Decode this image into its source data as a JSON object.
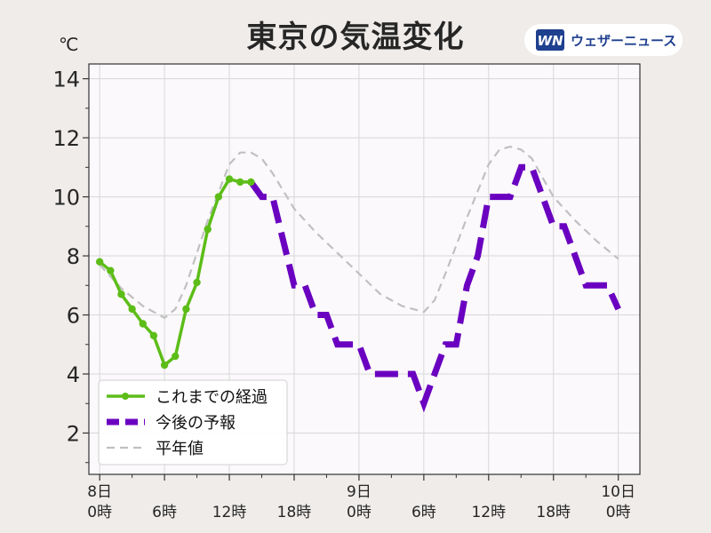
{
  "title": "東京の気温変化",
  "unit": "℃",
  "logo": {
    "text": "ウェザーニュース",
    "mark": "WN"
  },
  "colors": {
    "observed": "#5cbd18",
    "forecast": "#6a00c0",
    "normal": "#c0c0c0",
    "plot_background": "#fbf9fb",
    "grid": "#d8d8d8"
  },
  "chart_data": {
    "type": "line",
    "title": "東京の気温変化",
    "ylabel": "℃",
    "xlabel": "",
    "xlim": [
      -1,
      50
    ],
    "ylim": [
      0.6,
      14.5
    ],
    "grid": true,
    "legend_position": "bottom-left",
    "y_ticks": [
      2,
      4,
      6,
      8,
      10,
      12,
      14
    ],
    "x_ticks": [
      {
        "x": 0,
        "day": "8日",
        "hour": "0時"
      },
      {
        "x": 6,
        "day": "",
        "hour": "6時"
      },
      {
        "x": 12,
        "day": "",
        "hour": "12時"
      },
      {
        "x": 18,
        "day": "",
        "hour": "18時"
      },
      {
        "x": 24,
        "day": "9日",
        "hour": "0時"
      },
      {
        "x": 30,
        "day": "",
        "hour": "6時"
      },
      {
        "x": 36,
        "day": "",
        "hour": "12時"
      },
      {
        "x": 42,
        "day": "",
        "hour": "18時"
      },
      {
        "x": 48,
        "day": "10日",
        "hour": "0時"
      }
    ],
    "series": [
      {
        "name": "これまでの経過",
        "style": "solid-markers",
        "x": [
          0,
          1,
          2,
          3,
          4,
          5,
          6,
          7,
          8,
          9,
          10,
          11,
          12,
          13,
          14
        ],
        "y": [
          7.8,
          7.5,
          6.7,
          6.2,
          5.7,
          5.3,
          4.3,
          4.6,
          6.2,
          7.1,
          8.9,
          10.0,
          10.6,
          10.5,
          10.5
        ]
      },
      {
        "name": "今後の予報",
        "style": "dashed-thick",
        "x": [
          14,
          15,
          16,
          17,
          18,
          19,
          20,
          21,
          22,
          23,
          24,
          25,
          26,
          27,
          28,
          29,
          30,
          31,
          32,
          33,
          34,
          35,
          36,
          37,
          38,
          39,
          40,
          41,
          42,
          43,
          44,
          45,
          46,
          47,
          48
        ],
        "y": [
          10.5,
          10,
          10,
          8.5,
          7,
          7,
          6,
          6,
          5,
          5,
          5,
          4,
          4,
          4,
          4,
          4,
          3,
          4,
          5,
          5,
          7,
          8,
          10,
          10,
          10,
          11,
          11,
          10,
          9,
          9,
          8,
          7,
          7,
          7,
          6.2
        ]
      },
      {
        "name": "平年値",
        "style": "dashed-thin",
        "x": [
          0,
          2,
          4,
          6,
          7,
          8,
          10,
          12,
          13,
          14,
          15,
          16,
          18,
          20,
          22,
          24,
          26,
          28,
          30,
          31,
          32,
          34,
          36,
          37,
          38,
          39,
          40,
          42,
          44,
          46,
          48
        ],
        "y": [
          7.7,
          6.9,
          6.3,
          5.9,
          6.2,
          7.0,
          9.2,
          11.1,
          11.5,
          11.5,
          11.3,
          10.8,
          9.6,
          8.8,
          8.1,
          7.4,
          6.7,
          6.3,
          6.1,
          6.5,
          7.4,
          9.3,
          11.1,
          11.6,
          11.7,
          11.6,
          11.3,
          10.0,
          9.2,
          8.5,
          7.9
        ]
      }
    ]
  }
}
